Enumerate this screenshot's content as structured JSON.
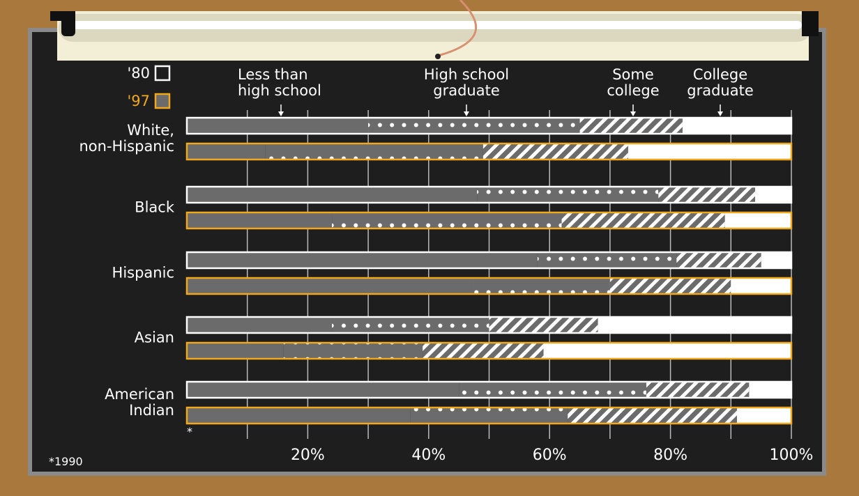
{
  "chart_data": {
    "type": "stacked-bar",
    "categories": [
      "White,\nnon-Hispanic",
      "Black",
      "Hispanic",
      "Asian",
      "American\nIndian"
    ],
    "segments": [
      "Less than\nhigh school",
      "High school\ngraduate",
      "Some\ncollege",
      "College\ngraduate"
    ],
    "series": [
      {
        "name": "'80",
        "color": "#ffffff",
        "values": [
          [
            30,
            35,
            17,
            18
          ],
          [
            48,
            30,
            16,
            6
          ],
          [
            58,
            23,
            14,
            5
          ],
          [
            24,
            26,
            18,
            32
          ],
          [
            45,
            31,
            17,
            7
          ]
        ]
      },
      {
        "name": "'97",
        "color": "#f2a81d",
        "values": [
          [
            13,
            36,
            24,
            27
          ],
          [
            24,
            38,
            27,
            11
          ],
          [
            47,
            23,
            20,
            10
          ],
          [
            16,
            23,
            20,
            41
          ],
          [
            37,
            26,
            28,
            9
          ]
        ]
      }
    ],
    "xlim": [
      0,
      100
    ],
    "xticks": [
      {
        "value": 20,
        "label": "20%"
      },
      {
        "value": 40,
        "label": "40%"
      },
      {
        "value": 60,
        "label": "60%"
      },
      {
        "value": 80,
        "label": "80%"
      },
      {
        "value": 100,
        "label": "100%"
      }
    ],
    "minor_xticks": [
      10,
      30,
      50,
      70,
      90
    ],
    "footnote_marker": "*",
    "footnote": "*1990"
  }
}
